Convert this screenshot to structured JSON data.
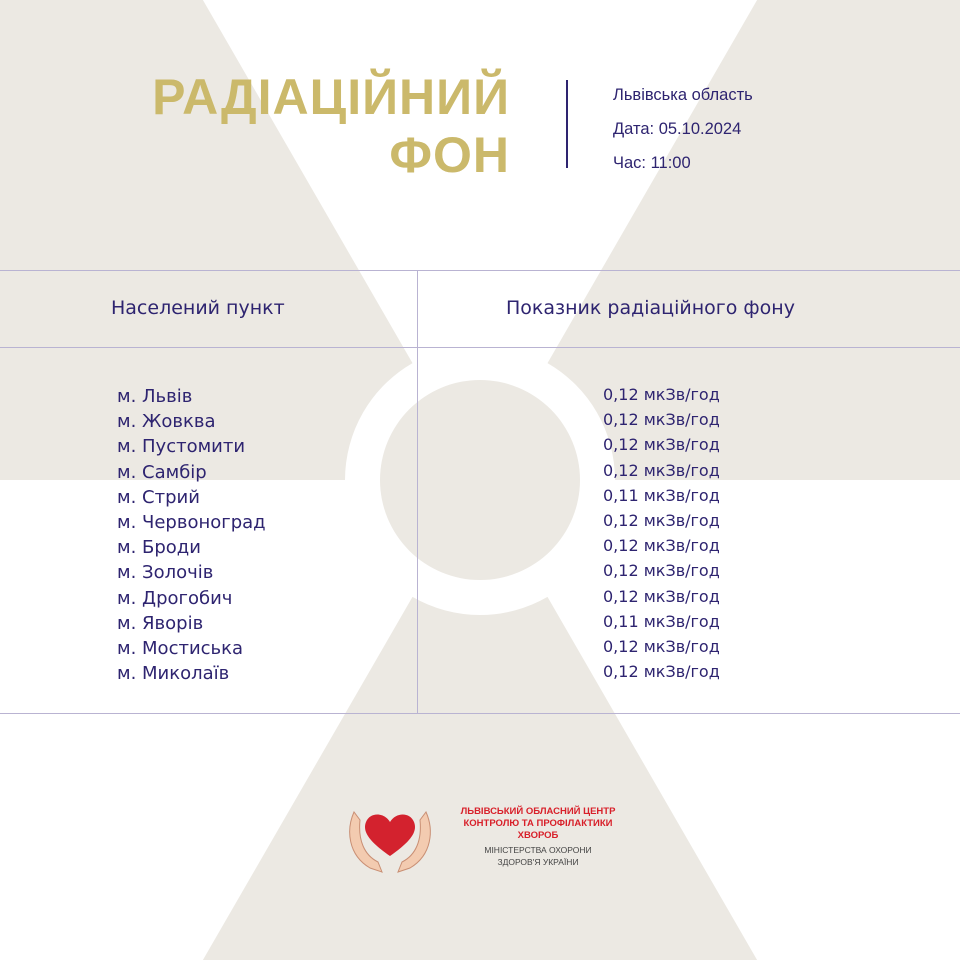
{
  "header": {
    "title_line1": "РАДІАЦІЙНИЙ",
    "title_line2": "ФОН",
    "region": "Львівська область",
    "date": "Дата: 05.10.2024",
    "time": "Час: 11:00"
  },
  "table": {
    "headers": [
      "Населений пункт",
      "Показник радіаційного фону"
    ],
    "rows": [
      {
        "place": "м. Львів",
        "value": "0,12 мкЗв/год"
      },
      {
        "place": "м. Жовква",
        "value": "0,12 мкЗв/год"
      },
      {
        "place": "м. Пустомити",
        "value": "0,12 мкЗв/год"
      },
      {
        "place": "м. Самбір",
        "value": "0,12 мкЗв/год"
      },
      {
        "place": "м. Стрий",
        "value": "0,11 мкЗв/год"
      },
      {
        "place": "м. Червоноград",
        "value": "0,12 мкЗв/год"
      },
      {
        "place": "м. Броди",
        "value": "0,12 мкЗв/год"
      },
      {
        "place": "м. Золочів",
        "value": "0,12 мкЗв/год"
      },
      {
        "place": "м. Дрогобич",
        "value": "0,12 мкЗв/год"
      },
      {
        "place": "м. Яворів",
        "value": "0,11 мкЗв/год"
      },
      {
        "place": "м. Мостиська",
        "value": "0,12 мкЗв/год"
      },
      {
        "place": "м. Миколаїв",
        "value": "0,12 мкЗв/год"
      }
    ]
  },
  "logo": {
    "line1": "ЛЬВІВСЬКИЙ ОБЛАСНИЙ ЦЕНТР",
    "line2": "КОНТРОЛЮ ТА ПРОФІЛАКТИКИ",
    "line3": "ХВОРОБ",
    "line4": "МІНІСТЕРСТВА ОХОРОНИ",
    "line5": "ЗДОРОВ'Я УКРАЇНИ"
  },
  "colors": {
    "title": "#cbb96b",
    "text": "#2e2470",
    "background_symbol": "#ece9e3",
    "logo_red": "#d8202a"
  },
  "background_icon": "radiation-trefoil-icon"
}
